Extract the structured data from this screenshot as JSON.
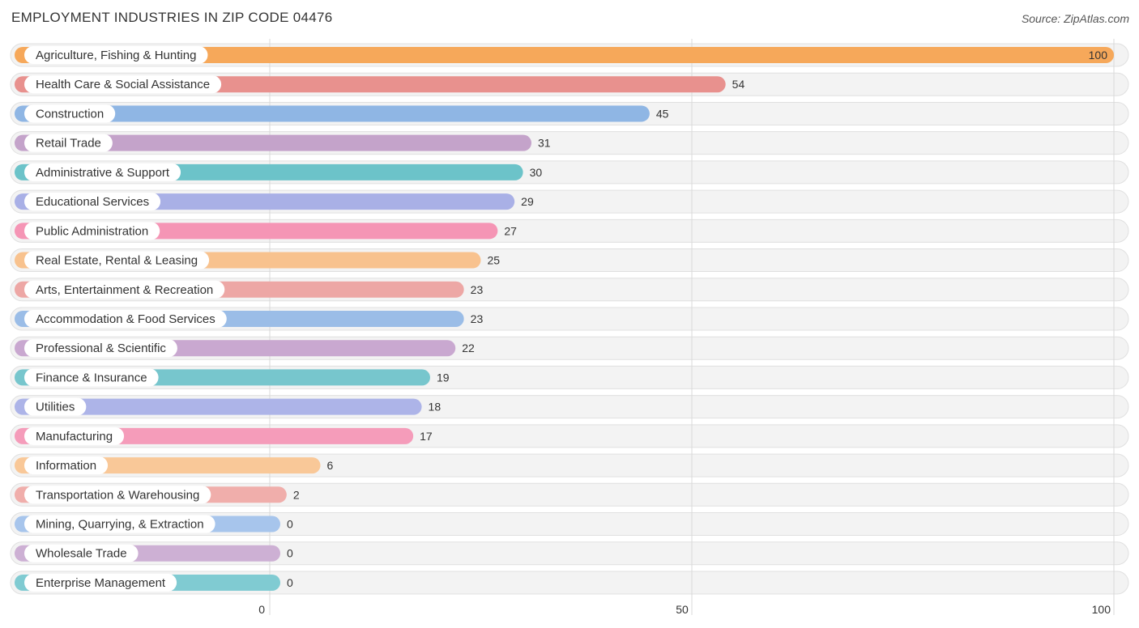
{
  "header": {
    "title": "EMPLOYMENT INDUSTRIES IN ZIP CODE 04476",
    "source": "Source: ZipAtlas.com"
  },
  "chart_data": {
    "type": "bar",
    "orientation": "horizontal",
    "title": "EMPLOYMENT INDUSTRIES IN ZIP CODE 04476",
    "xlim": [
      0,
      100
    ],
    "ticks": [
      0,
      50,
      100
    ],
    "grid": true,
    "categories": [
      "Agriculture, Fishing & Hunting",
      "Health Care & Social Assistance",
      "Construction",
      "Retail Trade",
      "Administrative & Support",
      "Educational Services",
      "Public Administration",
      "Real Estate, Rental & Leasing",
      "Arts, Entertainment & Recreation",
      "Accommodation & Food Services",
      "Professional & Scientific",
      "Finance & Insurance",
      "Utilities",
      "Manufacturing",
      "Information",
      "Transportation & Warehousing",
      "Mining, Quarrying, & Extraction",
      "Wholesale Trade",
      "Enterprise Management"
    ],
    "values": [
      100,
      54,
      45,
      31,
      30,
      29,
      27,
      25,
      23,
      23,
      22,
      19,
      18,
      17,
      6,
      2,
      0,
      0,
      0
    ],
    "colors": [
      "#f6a85a",
      "#e8918e",
      "#8fb6e4",
      "#c4a3ca",
      "#6cc3c9",
      "#a9b0e6",
      "#f595b5",
      "#f8c28e",
      "#eda7a5",
      "#9bbde7",
      "#c9a8d0",
      "#77c6cd",
      "#adb4e8",
      "#f59cba",
      "#f9c898",
      "#f0aeab",
      "#a7c5ec",
      "#cdb0d4",
      "#80cbd2"
    ]
  }
}
